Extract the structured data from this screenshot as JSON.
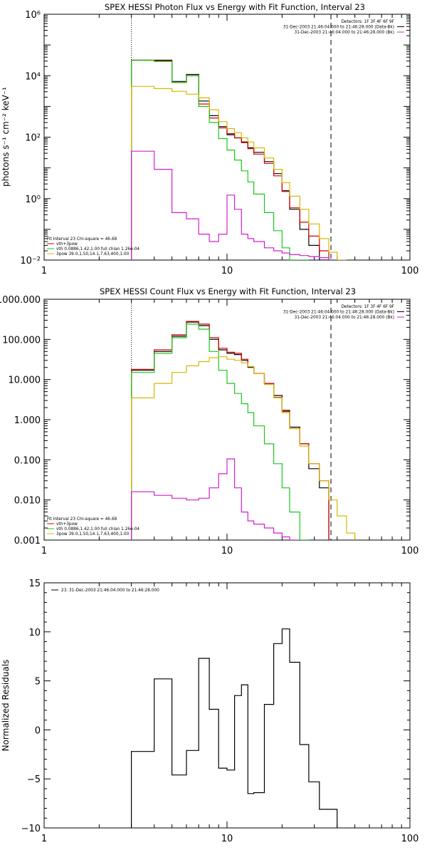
{
  "colors": {
    "black": "#000000",
    "red": "#d40000",
    "green": "#19c819",
    "yellow": "#d6b800",
    "magenta": "#d21ed2"
  },
  "chart_data": [
    {
      "type": "line",
      "title": "SPEX HESSI Photon Flux vs Energy with Fit Function, Interval 23",
      "xlabel": "",
      "ylabel": "photons s⁻¹ cm⁻² keV⁻¹",
      "xlog": true,
      "ylog": true,
      "xlim": [
        1,
        100
      ],
      "ylim": [
        0.01,
        1000000
      ],
      "xticks": [
        {
          "v": 1,
          "label": "1"
        },
        {
          "v": 10,
          "label": "10"
        },
        {
          "v": 100,
          "label": "100"
        }
      ],
      "yticks": [
        {
          "v": 0.01,
          "label": "10⁻²"
        },
        {
          "v": 1,
          "label": "10⁰"
        },
        {
          "v": 100,
          "label": "10²"
        },
        {
          "v": 10000,
          "label": "10⁴"
        },
        {
          "v": 1000000,
          "label": "10⁶"
        }
      ],
      "vlines": [
        {
          "x": 3,
          "style": "dotted"
        },
        {
          "x": 37,
          "style": "dashed"
        }
      ],
      "legend_top": [
        {
          "text": "Detectors: 1F 3F 4F 6F 9F",
          "color": ""
        },
        {
          "text": "31-Dec-2003 21:46:04.000 to 21:46:28.000 (Data-Bk)",
          "color": "#000000"
        },
        {
          "text": "31-Dec-2003 21:46:04.000 to 21:46:28.000 (Bk)",
          "color": "#d21ed2"
        }
      ],
      "legend_bottom": [
        {
          "text": "Fit Interval 23   Chi-square = 46.68",
          "color": ""
        },
        {
          "text": "vth+3pow",
          "color": "#d40000"
        },
        {
          "text": "vth 0.0886,1.42,1.00  full chian 1.26e-04",
          "color": "#19c819"
        },
        {
          "text": "3pow 39.0,1.50,14.1,7.63,400,1.00",
          "color": "#d6b800"
        }
      ],
      "edges": [
        3,
        4,
        5,
        6,
        7,
        8,
        9,
        10,
        11,
        12,
        13,
        14,
        16,
        18,
        20,
        22,
        25,
        28,
        32,
        36,
        40,
        45,
        50
      ],
      "series": [
        {
          "color": "#000000",
          "values": [
            32000,
            32000,
            6500,
            11000,
            1500,
            500,
            220,
            120,
            95,
            70,
            45,
            32,
            16,
            6.5,
            1.8,
            0.45,
            0.1,
            0.03,
            0.009
          ]
        },
        {
          "color": "#d40000",
          "values": [
            32000,
            30000,
            6000,
            10000,
            1200,
            420,
            200,
            130,
            95,
            66,
            42,
            28,
            14,
            5.5,
            1.7,
            0.5,
            0.17,
            0.06,
            0.02
          ]
        },
        {
          "color": "#19c819",
          "values": [
            32000,
            29000,
            6000,
            10000,
            1000,
            300,
            90,
            38,
            18,
            8,
            3.5,
            1.4,
            0.35,
            0.09,
            0.025,
            0.009,
            0.004
          ]
        },
        {
          "color": "#d6b800",
          "values": [
            4500,
            3800,
            3100,
            2500,
            1900,
            780,
            320,
            190,
            140,
            95,
            70,
            45,
            21,
            9,
            3.3,
            1.2,
            0.45,
            0.15,
            0.05,
            0.018,
            0.008
          ]
        },
        {
          "color": "#d21ed2",
          "values": [
            35,
            9,
            0.35,
            0.22,
            0.07,
            0.04,
            0.07,
            1.3,
            0.45,
            0.07,
            0.05,
            0.04,
            0.025,
            0.02,
            0.017,
            0.015,
            0.014,
            0.013,
            0.012
          ]
        }
      ]
    },
    {
      "type": "line",
      "title": "SPEX HESSI Count Flux vs Energy with Fit Function, Interval 23",
      "xlabel": "",
      "ylabel": "",
      "xlog": true,
      "ylog": true,
      "xlim": [
        1,
        100
      ],
      "ylim": [
        0.001,
        1000
      ],
      "xticks": [
        {
          "v": 1,
          "label": "1"
        },
        {
          "v": 10,
          "label": "10"
        },
        {
          "v": 100,
          "label": "100"
        }
      ],
      "yticks": [
        {
          "v": 0.001,
          "label": "0.001"
        },
        {
          "v": 0.01,
          "label": "0.010"
        },
        {
          "v": 0.1,
          "label": "0.100"
        },
        {
          "v": 1,
          "label": "1.000"
        },
        {
          "v": 10,
          "label": "10.000"
        },
        {
          "v": 100,
          "label": "100.000"
        },
        {
          "v": 1000,
          "label": "1000.000"
        }
      ],
      "vlines": [
        {
          "x": 3,
          "style": "dotted"
        },
        {
          "x": 37,
          "style": "dashed"
        }
      ],
      "legend_top": [
        {
          "text": "Detectors: 1F 3F 4F 6F 9F",
          "color": ""
        },
        {
          "text": "31-Dec-2003 21:46:04.000 to 21:46:28.000 (Data-Bk)",
          "color": "#000000"
        },
        {
          "text": "31-Dec-2003 21:46:04.000 to 21:46:28.000 (Bk)",
          "color": "#d21ed2"
        }
      ],
      "legend_bottom": [
        {
          "text": "Fit Interval 23   Chi-square = 46.68",
          "color": ""
        },
        {
          "text": "vth+3pow",
          "color": "#d40000"
        },
        {
          "text": "vth 0.0886,1.42,1.00  full chian 1.26e-04",
          "color": "#19c819"
        },
        {
          "text": "3pow 39.0,1.50,14.1,7.63,400,1.00",
          "color": "#d6b800"
        }
      ],
      "edges": [
        3,
        4,
        5,
        6,
        7,
        8,
        9,
        10,
        11,
        12,
        13,
        14,
        16,
        18,
        20,
        22,
        25,
        28,
        32,
        36,
        40,
        45,
        50
      ],
      "series": [
        {
          "color": "#000000",
          "values": [
            17,
            50,
            120,
            270,
            220,
            100,
            55,
            45,
            42,
            30,
            20,
            14,
            8,
            4,
            1.7,
            0.65,
            0.25,
            0.06,
            0.02
          ]
        },
        {
          "color": "#d40000",
          "values": [
            18,
            55,
            130,
            280,
            240,
            110,
            60,
            48,
            45,
            32,
            21,
            14,
            8,
            3.6,
            1.6,
            0.6,
            0.25,
            0.08,
            0.03
          ]
        },
        {
          "color": "#19c819",
          "values": [
            15,
            45,
            110,
            240,
            180,
            50,
            17,
            8,
            4.5,
            2.5,
            1.5,
            0.7,
            0.25,
            0.08,
            0.02,
            0.005,
            0.001
          ]
        },
        {
          "color": "#d6b800",
          "values": [
            3.5,
            8,
            15,
            22,
            28,
            35,
            37,
            32,
            30,
            26,
            21,
            14,
            7.5,
            3.5,
            1.5,
            0.6,
            0.22,
            0.08,
            0.03,
            0.01,
            0.004,
            0.0015
          ]
        },
        {
          "color": "#d21ed2",
          "values": [
            0.016,
            0.013,
            0.011,
            0.01,
            0.011,
            0.02,
            0.045,
            0.105,
            0.02,
            0.005,
            0.003,
            0.0025,
            0.002,
            0.0015,
            0.0012,
            0.001
          ]
        }
      ]
    },
    {
      "type": "line",
      "title": "",
      "xlabel": "",
      "ylabel": "Normalized Residuals",
      "xlog": true,
      "ylog": false,
      "xlim": [
        1,
        100
      ],
      "ylim": [
        -10,
        15
      ],
      "xticks": [
        {
          "v": 1,
          "label": "1"
        },
        {
          "v": 10,
          "label": "10"
        },
        {
          "v": 100,
          "label": "100"
        }
      ],
      "yticks": [
        {
          "v": -10,
          "label": "−10"
        },
        {
          "v": -5,
          "label": "−5"
        },
        {
          "v": 0,
          "label": "0"
        },
        {
          "v": 5,
          "label": "5"
        },
        {
          "v": 10,
          "label": "10"
        },
        {
          "v": 15,
          "label": "15"
        }
      ],
      "vlines": [],
      "legend_top": [
        {
          "text": "23. 31-Dec-2003 21:46:04.000 to 21:46:28.000",
          "color": "#000000"
        }
      ],
      "legend_bottom": [],
      "edges": [
        3,
        4,
        5,
        6,
        7,
        8,
        9,
        10,
        11,
        12,
        13,
        14,
        16,
        18,
        20,
        22,
        25,
        28,
        32,
        36,
        40
      ],
      "series": [
        {
          "color": "#000000",
          "start": -13,
          "values": [
            -2.2,
            5.2,
            -4.6,
            -2.1,
            7.3,
            2.1,
            -3.9,
            -4.1,
            3.5,
            4.6,
            -6.5,
            -6.4,
            2.6,
            8.8,
            10.3,
            6.9,
            -1.5,
            -5.3,
            -8.1,
            -8.1
          ]
        }
      ]
    }
  ]
}
